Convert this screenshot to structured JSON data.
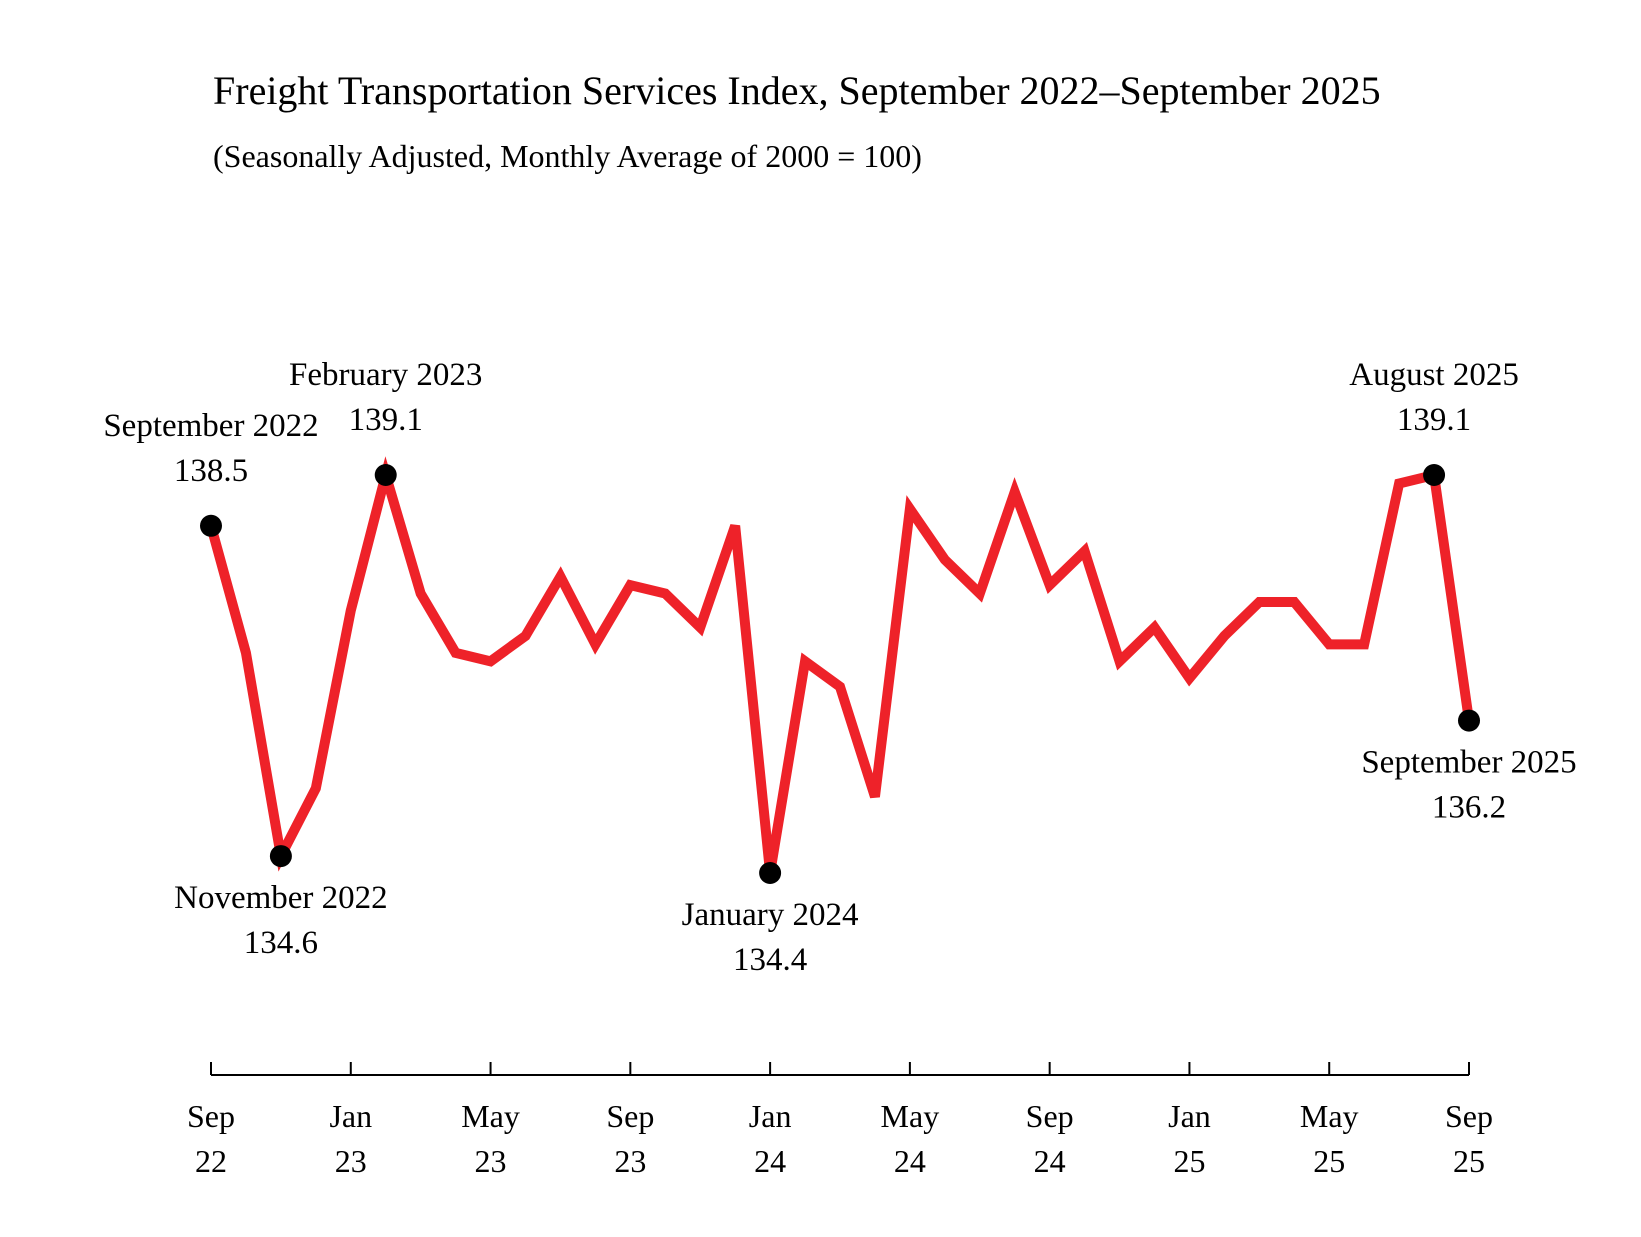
{
  "chart_data": {
    "type": "line",
    "title": "Freight Transportation Services Index, September 2022–September 2025",
    "subtitle": "(Seasonally Adjusted, Monthly Average of 2000 = 100)",
    "categories": [
      "Sep 22",
      null,
      null,
      null,
      "Jan 23",
      null,
      null,
      null,
      "May 23",
      null,
      null,
      null,
      "Sep 23",
      null,
      null,
      null,
      "Jan 24",
      null,
      null,
      null,
      "May 24",
      null,
      null,
      null,
      "Sep 24",
      null,
      null,
      null,
      "Jan 25",
      null,
      null,
      null,
      "May 25",
      null,
      null,
      null,
      "Sep 25"
    ],
    "values": [
      138.5,
      137.0,
      134.6,
      135.4,
      137.5,
      139.1,
      137.7,
      137.0,
      136.9,
      137.2,
      137.9,
      137.1,
      137.8,
      137.7,
      137.3,
      138.5,
      134.4,
      136.9,
      136.6,
      135.3,
      138.7,
      138.1,
      137.7,
      138.9,
      137.8,
      138.2,
      136.9,
      137.3,
      136.7,
      137.2,
      137.6,
      137.6,
      137.1,
      137.1,
      139.0,
      139.1,
      136.2
    ],
    "point_labels": [
      "September 2022",
      null,
      "November 2022",
      null,
      null,
      "February 2023",
      null,
      null,
      null,
      null,
      null,
      null,
      null,
      null,
      null,
      null,
      "January 2024",
      null,
      null,
      null,
      null,
      null,
      null,
      null,
      null,
      null,
      null,
      null,
      null,
      null,
      null,
      null,
      null,
      null,
      null,
      "August 2025",
      "September 2025"
    ],
    "color": "#ee2229",
    "marker_color": "#000000"
  }
}
